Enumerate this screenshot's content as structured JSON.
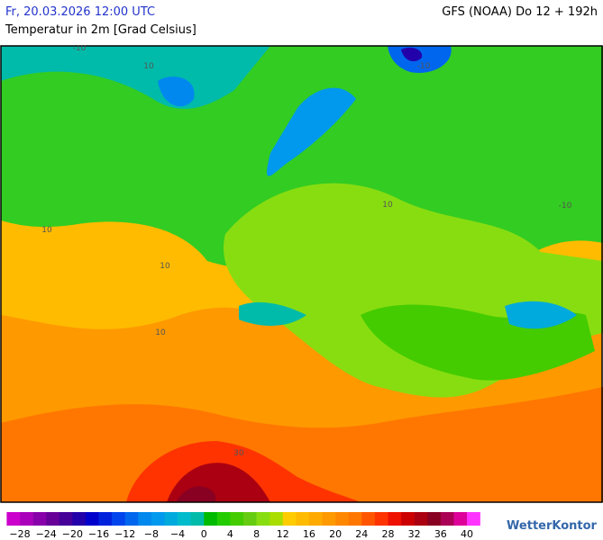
{
  "header": {
    "datetime": "Fr, 20.03.2026 12:00 UTC",
    "model": "GFS (NOAA) Do 12 + 192h",
    "parameter": "Temperatur in 2m [Grad Celsius]"
  },
  "map": {
    "contour_labels": [
      "-10",
      "-10",
      "-10",
      "10",
      "10",
      "10",
      "10",
      "10",
      "30"
    ]
  },
  "legend": {
    "ticks": [
      {
        "value": -28,
        "label": "−28"
      },
      {
        "value": -24,
        "label": "−24"
      },
      {
        "value": -20,
        "label": "−20"
      },
      {
        "value": -16,
        "label": "−16"
      },
      {
        "value": -12,
        "label": "−12"
      },
      {
        "value": -8,
        "label": "−8"
      },
      {
        "value": -4,
        "label": "−4"
      },
      0,
      4,
      8,
      12,
      16,
      20,
      24,
      28,
      32,
      36,
      40
    ],
    "colors": [
      "#cc00cc",
      "#aa00bb",
      "#8800aa",
      "#660099",
      "#440099",
      "#2200aa",
      "#0000cc",
      "#0022dd",
      "#0044ee",
      "#0066ee",
      "#0088ee",
      "#0099ee",
      "#00aadd",
      "#00bbcc",
      "#00bbaa",
      "#00bb00",
      "#22cc00",
      "#44cc00",
      "#66cc11",
      "#88dd11",
      "#aadd00",
      "#ffcc00",
      "#ffbb00",
      "#ffaa00",
      "#ff9900",
      "#ff8800",
      "#ff7700",
      "#ff5500",
      "#ff3300",
      "#ee1100",
      "#cc0000",
      "#aa0011",
      "#880022",
      "#aa0055",
      "#dd0099",
      "#ff33ff"
    ]
  },
  "logo": "WetterKontor"
}
